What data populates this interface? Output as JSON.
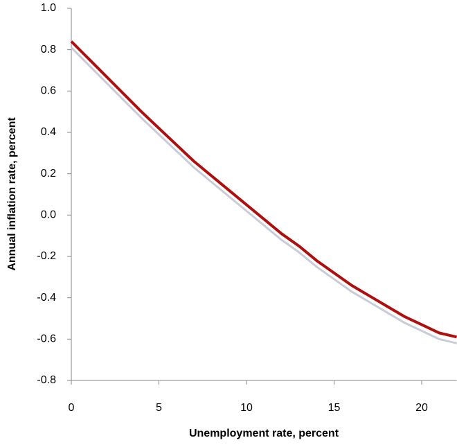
{
  "chart_data": {
    "type": "line",
    "x_label": "Unemployment rate, percent",
    "y_label": "Annual inflation rate, percent",
    "x": [
      0,
      1,
      2,
      3,
      4,
      5,
      6,
      7,
      8,
      9,
      10,
      11,
      12,
      13,
      14,
      15,
      16,
      17,
      18,
      19,
      20,
      21,
      22
    ],
    "series": [
      {
        "color": "#c8ccd6",
        "values": [
          0.81,
          0.725,
          0.64,
          0.555,
          0.47,
          0.39,
          0.31,
          0.23,
          0.16,
          0.09,
          0.02,
          -0.05,
          -0.12,
          -0.18,
          -0.25,
          -0.31,
          -0.37,
          -0.42,
          -0.47,
          -0.52,
          -0.56,
          -0.6,
          -0.62
        ]
      },
      {
        "color": "#b00d0d",
        "values": [
          0.84,
          0.755,
          0.67,
          0.585,
          0.5,
          0.42,
          0.34,
          0.26,
          0.19,
          0.12,
          0.05,
          -0.02,
          -0.09,
          -0.15,
          -0.22,
          -0.28,
          -0.34,
          -0.39,
          -0.44,
          -0.49,
          -0.53,
          -0.57,
          -0.59
        ]
      }
    ],
    "xlim": [
      0,
      22
    ],
    "xticks": [
      0,
      5,
      10,
      15,
      20
    ],
    "ylim": [
      -0.8,
      1.0
    ],
    "yticks": [
      -0.8,
      -0.6,
      -0.4,
      -0.2,
      {
        "value": 0,
        "label": "0.0"
      },
      0.2,
      0.4,
      0.6,
      0.8,
      {
        "value": 1,
        "label": "1.0"
      }
    ]
  }
}
